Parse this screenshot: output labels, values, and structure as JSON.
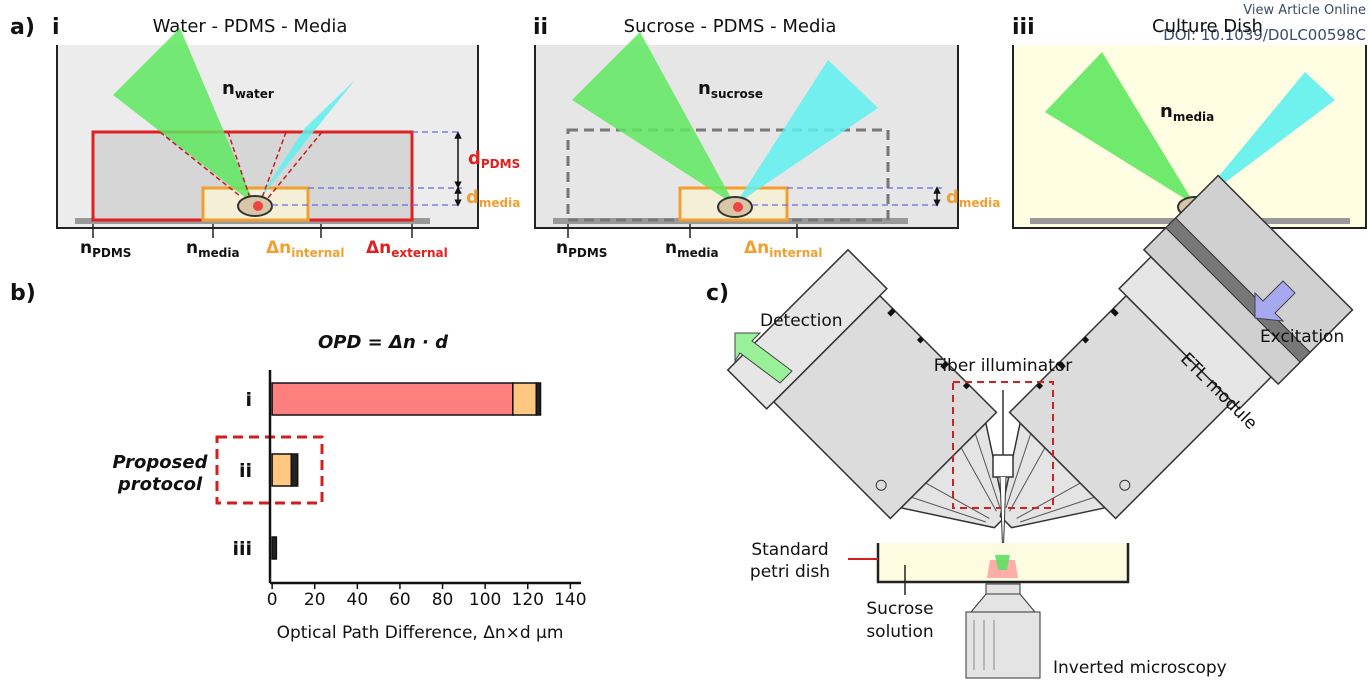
{
  "header": {
    "view_article": "View Article Online",
    "doi": "DOI: 10.1039/D0LC00598C"
  },
  "panel_a": {
    "label": "a)",
    "subpanels": [
      {
        "numeral": "i",
        "title": "Water - PDMS - Media",
        "medium": {
          "symbol": "n",
          "sub": "water"
        },
        "d_pdms": {
          "symbol": "d",
          "sub": "PDMS"
        },
        "d_media": {
          "symbol": "d",
          "sub": "media"
        },
        "bottom": [
          {
            "symbol": "n",
            "sub": "PDMS"
          },
          {
            "symbol": "n",
            "sub": "media"
          },
          {
            "symbol": "Δn",
            "sub": "internal"
          },
          {
            "symbol": "Δn",
            "sub": "external"
          }
        ]
      },
      {
        "numeral": "ii",
        "title": "Sucrose - PDMS - Media",
        "medium": {
          "symbol": "n",
          "sub": "sucrose"
        },
        "d_media": {
          "symbol": "d",
          "sub": "media"
        },
        "bottom": [
          {
            "symbol": "n",
            "sub": "PDMS"
          },
          {
            "symbol": "n",
            "sub": "media"
          },
          {
            "symbol": "Δn",
            "sub": "internal"
          }
        ]
      },
      {
        "numeral": "iii",
        "title": "Culture Dish",
        "medium": {
          "symbol": "n",
          "sub": "media"
        }
      }
    ]
  },
  "panel_b": {
    "label": "b)"
  },
  "chart_data": {
    "type": "bar",
    "orientation": "horizontal",
    "stacked": true,
    "title": "OPD = Δn · d",
    "x_label": "Optical Path Difference, Δn×d μm",
    "categories": [
      "i",
      "ii",
      "iii"
    ],
    "series": [
      {
        "color": "#ff7f7f",
        "values": [
          113,
          0,
          0
        ]
      },
      {
        "color": "#ffc77f",
        "values": [
          11,
          9,
          0
        ]
      },
      {
        "color": "#222222",
        "values": [
          2,
          3,
          2
        ]
      }
    ],
    "xlim": [
      -1,
      145
    ],
    "xticks": [
      0,
      20,
      40,
      60,
      80,
      100,
      120,
      140
    ],
    "annotation": [
      "Proposed",
      "protocol"
    ]
  },
  "panel_c": {
    "label": "c)",
    "detection": "Detection",
    "excitation": "Excitation",
    "fiber": "Fiber illuminator",
    "etl": "ETL module",
    "petri": [
      "Standard",
      "petri dish"
    ],
    "sucrose": [
      "Sucrose",
      "solution"
    ],
    "microscopy": "Inverted microscopy"
  }
}
